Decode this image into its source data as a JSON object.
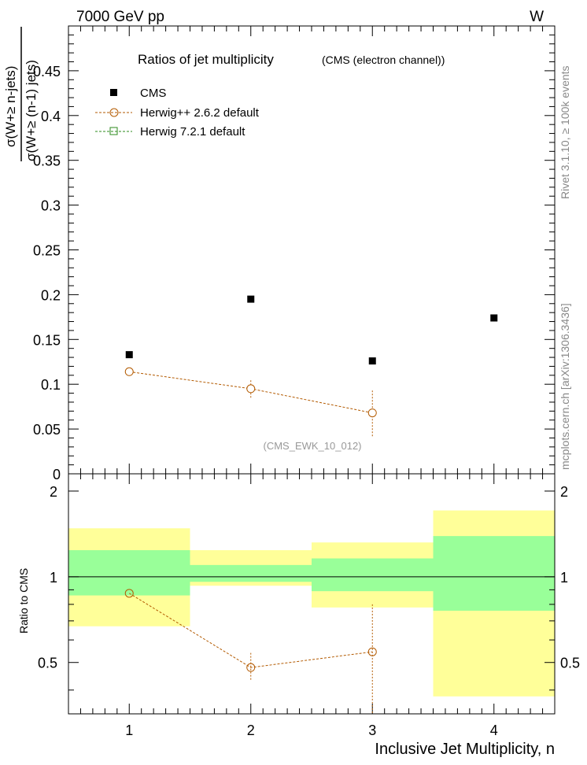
{
  "header": {
    "left_label": "7000 GeV pp",
    "right_label": "W",
    "side_label_top": "Rivet 3.1.10, ≥ 100k events",
    "side_label_bottom": "mcplots.cern.ch [arXiv:1306.3436]"
  },
  "chart_data": [
    {
      "type": "scatter",
      "title": "Ratios of jet multiplicity",
      "subtitle": "(CMS (electron channel))",
      "watermark": "(CMS_EWK_10_012)",
      "ylabel": "σ(W+≥ n-jets) / σ(W+≥ (n-1) jets)",
      "ylim": [
        0,
        0.5
      ],
      "y_ticks": [
        "0",
        "0.05",
        "0.1",
        "0.15",
        "0.2",
        "0.25",
        "0.3",
        "0.35",
        "0.4",
        "0.45"
      ],
      "x": [
        1,
        2,
        3,
        4
      ],
      "xlim": [
        0.5,
        4.5
      ],
      "legend": [
        "CMS",
        "Herwig++ 2.6.2 default",
        "Herwig 7.2.1 default"
      ],
      "series": [
        {
          "name": "CMS",
          "marker": "filled-square",
          "color": "#000000",
          "x": [
            1,
            2,
            3,
            4
          ],
          "values": [
            0.133,
            0.195,
            0.126,
            0.174
          ]
        },
        {
          "name": "Herwig++ 2.6.2 default",
          "marker": "open-circle",
          "color": "#b35a00",
          "x": [
            1,
            2,
            3
          ],
          "values": [
            0.114,
            0.095,
            0.068
          ],
          "err_lo": [
            0.114,
            0.085,
            0.042
          ],
          "err_hi": [
            0.114,
            0.105,
            0.094
          ]
        },
        {
          "name": "Herwig 7.2.1 default",
          "marker": "open-square",
          "color": "#2e8b1e",
          "x": [],
          "values": []
        }
      ]
    },
    {
      "type": "scatter",
      "title": "Ratio panel",
      "xlabel": "Inclusive Jet Multiplicity, n",
      "ylabel": "Ratio to CMS",
      "ylim": [
        0.33,
        2.3
      ],
      "y_ticks": [
        "0.5",
        "1",
        "2"
      ],
      "x_ticks": [
        "1",
        "2",
        "3",
        "4"
      ],
      "bands": [
        {
          "x": [
            0.5,
            1.5
          ],
          "inner": [
            0.86,
            1.24
          ],
          "outer": [
            0.67,
            1.48
          ]
        },
        {
          "x": [
            1.5,
            2.5
          ],
          "inner": [
            0.96,
            1.1
          ],
          "outer": [
            0.93,
            1.24
          ]
        },
        {
          "x": [
            2.5,
            3.5
          ],
          "inner": [
            0.89,
            1.16
          ],
          "outer": [
            0.78,
            1.32
          ]
        },
        {
          "x": [
            3.5,
            4.5
          ],
          "inner": [
            0.76,
            1.39
          ],
          "outer": [
            0.38,
            1.71
          ]
        }
      ],
      "band_colors": {
        "inner": "#99ff99",
        "outer": "#ffff99"
      },
      "series": [
        {
          "name": "Herwig++ 2.6.2 default",
          "color": "#b35a00",
          "x": [
            1,
            2,
            3
          ],
          "values": [
            0.875,
            0.48,
            0.545
          ],
          "err_lo": [
            0.875,
            0.43,
            0.3
          ],
          "err_hi": [
            0.875,
            0.54,
            0.8
          ]
        }
      ]
    }
  ]
}
